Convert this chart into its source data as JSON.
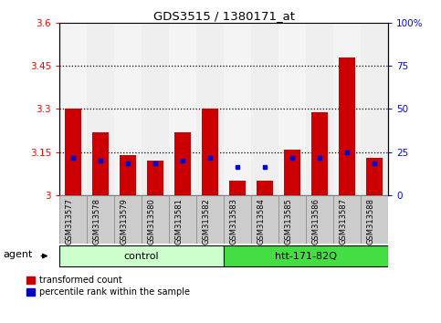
{
  "title": "GDS3515 / 1380171_at",
  "samples": [
    "GSM313577",
    "GSM313578",
    "GSM313579",
    "GSM313580",
    "GSM313581",
    "GSM313582",
    "GSM313583",
    "GSM313584",
    "GSM313585",
    "GSM313586",
    "GSM313587",
    "GSM313588"
  ],
  "red_values": [
    3.3,
    3.22,
    3.14,
    3.12,
    3.22,
    3.3,
    3.05,
    3.05,
    3.16,
    3.29,
    3.48,
    3.13
  ],
  "blue_values": [
    3.13,
    3.12,
    3.11,
    3.11,
    3.12,
    3.13,
    3.1,
    3.1,
    3.13,
    3.13,
    3.15,
    3.11
  ],
  "ymin": 3.0,
  "ymax": 3.6,
  "y2min": 0,
  "y2max": 100,
  "yticks": [
    3.0,
    3.15,
    3.3,
    3.45,
    3.6
  ],
  "y2ticks": [
    0,
    25,
    50,
    75,
    100
  ],
  "ytick_labels": [
    "3",
    "3.15",
    "3.3",
    "3.45",
    "3.6"
  ],
  "y2tick_labels": [
    "0",
    "25",
    "50",
    "75",
    "100%"
  ],
  "grid_values": [
    3.15,
    3.3,
    3.45
  ],
  "control_label": "control",
  "treatment_label": "htt-171-82Q",
  "agent_label": "agent",
  "legend_red": "transformed count",
  "legend_blue": "percentile rank within the sample",
  "bar_color": "#cc0000",
  "blue_color": "#0000cc",
  "control_bg": "#ccffcc",
  "treatment_bg": "#44dd44",
  "bar_width": 0.6,
  "col_bg_even": "#dddddd",
  "col_bg_odd": "#cccccc"
}
